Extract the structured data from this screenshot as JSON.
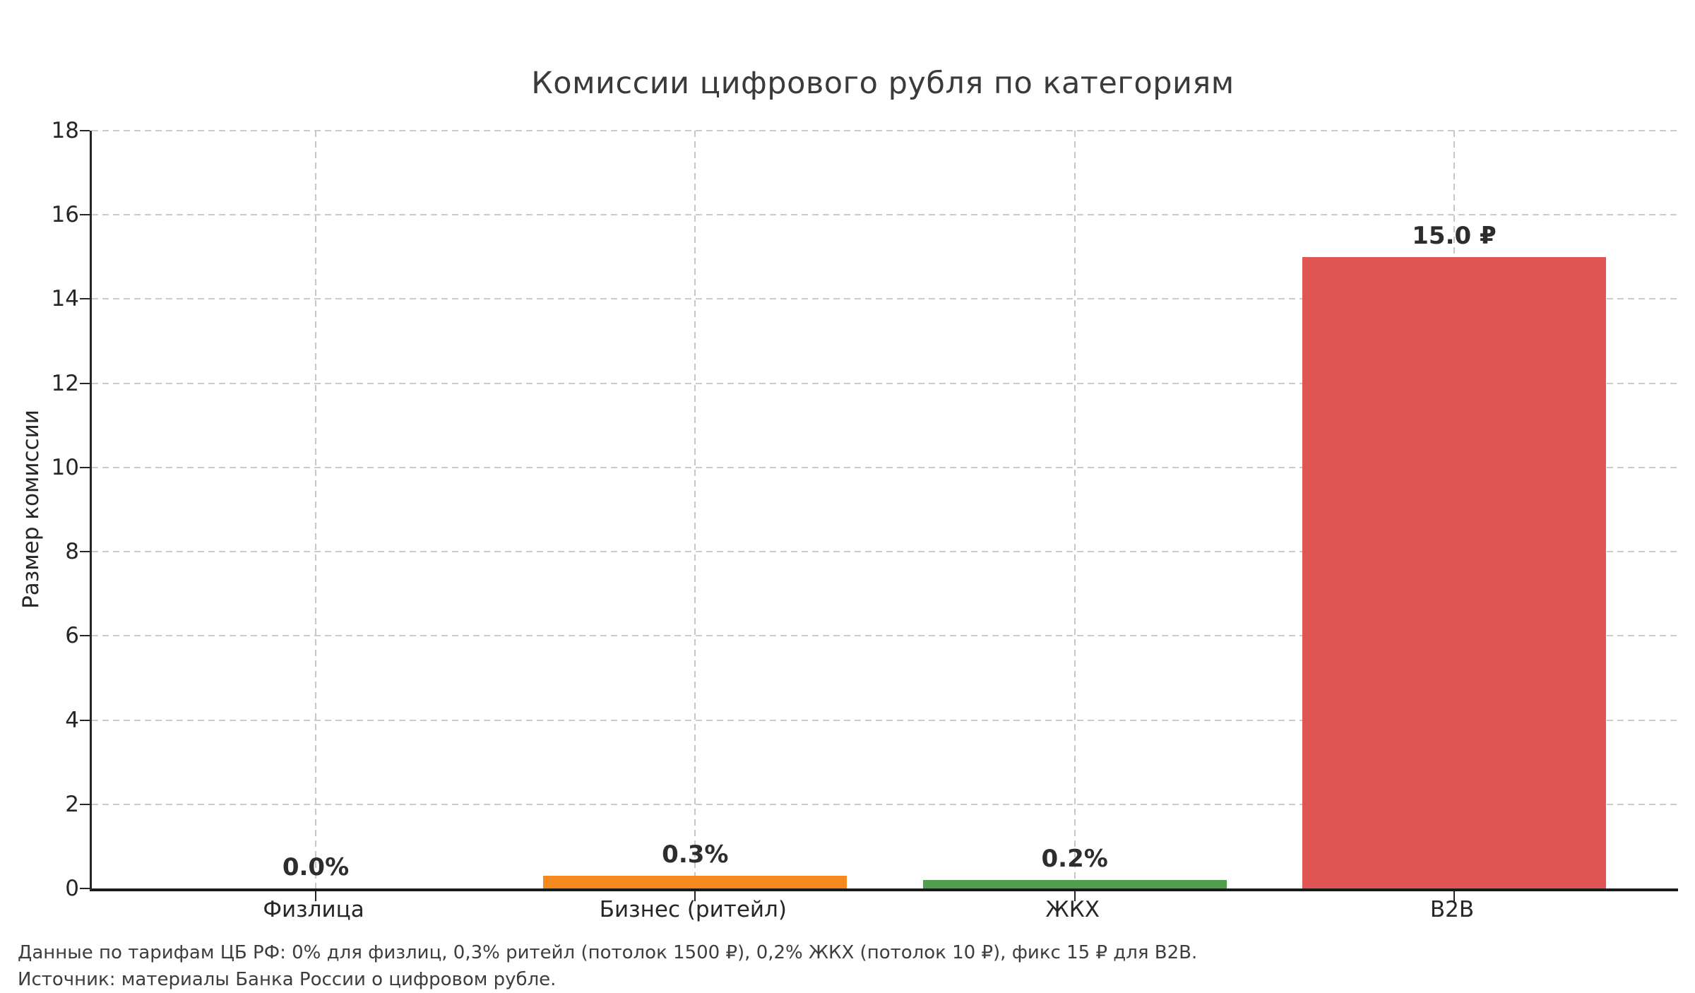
{
  "chart_data": {
    "type": "bar",
    "title": "Комиссии цифрового рубля по категориям",
    "ylabel": "Размер комиссии",
    "xlabel": "",
    "categories": [
      "Физлица",
      "Бизнес (ритейл)",
      "ЖКХ",
      "B2B"
    ],
    "values": [
      0.0,
      0.3,
      0.2,
      15.0
    ],
    "bar_labels": [
      "0.0%",
      "0.3%",
      "0.2%",
      "15.0 ₽"
    ],
    "bar_colors": [
      "#4e79a7",
      "#f5891f",
      "#4ea04e",
      "#e25555"
    ],
    "ylim": [
      0,
      18
    ],
    "yticks": [
      0,
      2,
      4,
      6,
      8,
      10,
      12,
      14,
      16,
      18
    ],
    "grid": "dashed",
    "legend": "none",
    "footnotes": [
      "Данные по тарифам ЦБ РФ: 0% для физлиц, 0,3% ритейл (потолок 1500 ₽), 0,2% ЖКХ (потолок 10 ₽), фикс 15 ₽ для B2B.",
      "Источник: материалы Банка России о цифровом рубле."
    ],
    "colors": {
      "axis": "#1a1a1a",
      "spine": "#262626",
      "grid": "#cbcbcb",
      "tick_text": "#262626",
      "value_text": "#2d2d2d",
      "title_text": "#3a3a3a",
      "footnote_text": "#3d3d3d",
      "background": "#ffffff"
    }
  }
}
